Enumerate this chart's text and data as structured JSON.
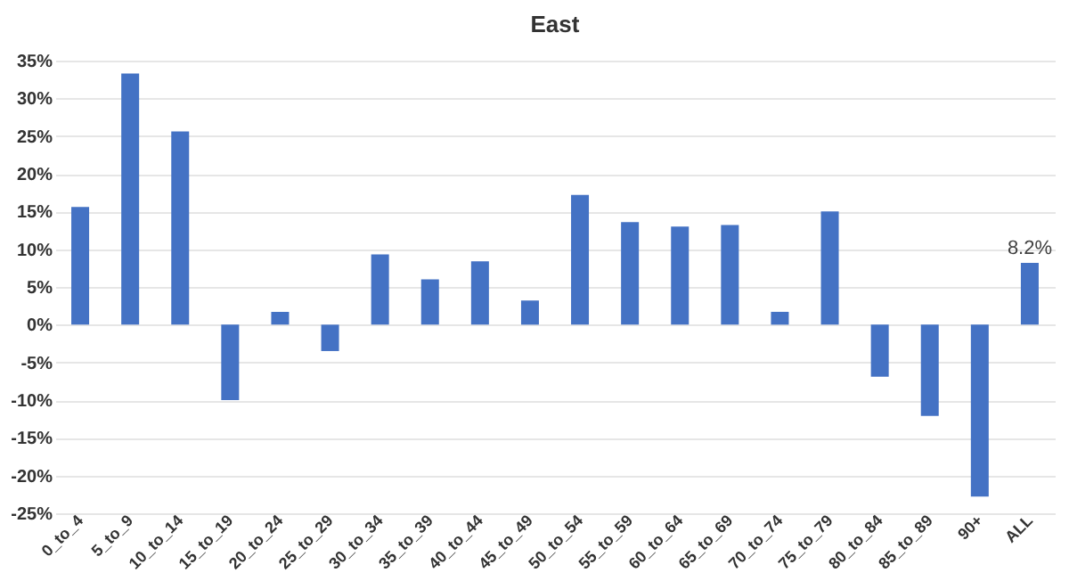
{
  "chart_data": {
    "type": "bar",
    "title": "East",
    "categories": [
      "0_to_4",
      "5_to_9",
      "10_to_14",
      "15_to_19",
      "20_to_24",
      "25_to_29",
      "30_to_34",
      "35_to_39",
      "40_to_44",
      "45_to_49",
      "50_to_54",
      "55_to_59",
      "60_to_64",
      "65_to_69",
      "70_to_74",
      "75_to_79",
      "80_to_84",
      "85_to_89",
      "90+",
      "ALL"
    ],
    "values": [
      15.6,
      33.3,
      25.6,
      -10.0,
      1.7,
      -3.5,
      9.3,
      6.0,
      8.4,
      3.2,
      17.2,
      13.6,
      13.0,
      13.2,
      1.7,
      15.0,
      -6.9,
      -12.1,
      -22.8,
      8.2
    ],
    "value_labels": [
      null,
      null,
      null,
      null,
      null,
      null,
      null,
      null,
      null,
      null,
      null,
      null,
      null,
      null,
      null,
      null,
      null,
      null,
      null,
      "8.2%"
    ],
    "color": "#4472c4",
    "ylim": [
      -25,
      35
    ],
    "yticks": [
      {
        "value": -25,
        "label": "-25%"
      },
      {
        "value": -20,
        "label": "-20%"
      },
      {
        "value": -15,
        "label": "-15%"
      },
      {
        "value": -10,
        "label": "-10%"
      },
      {
        "value": -5,
        "label": "-5%"
      },
      {
        "value": 0,
        "label": "0%"
      },
      {
        "value": 5,
        "label": "5%"
      },
      {
        "value": 10,
        "label": "10%"
      },
      {
        "value": 15,
        "label": "15%"
      },
      {
        "value": 20,
        "label": "20%"
      },
      {
        "value": 25,
        "label": "25%"
      },
      {
        "value": 30,
        "label": "30%"
      },
      {
        "value": 35,
        "label": "35%"
      }
    ],
    "grid": "y"
  }
}
